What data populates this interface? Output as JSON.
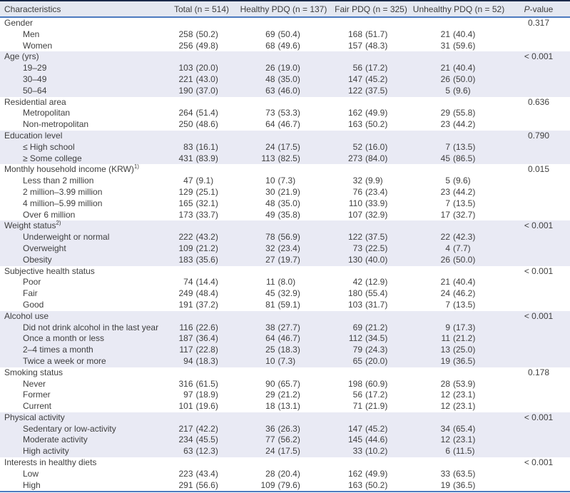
{
  "colors": {
    "top_rule": "#1b2a4a",
    "blue_rule": "#4c7bbf",
    "header_bg": "#e4e8f1",
    "shaded_row_bg": "#e9eaf4",
    "text": "#3f3f3f"
  },
  "table": {
    "header": {
      "characteristics": "Characteristics",
      "total": "Total (n = 514)",
      "healthy": "Healthy PDQ (n = 137)",
      "fair": "Fair PDQ (n = 325)",
      "unhealthy": "Unhealthy PDQ (n = 52)",
      "p_italic": "P",
      "p_rest": "-value"
    },
    "sections": [
      {
        "label": "Gender",
        "sup": "",
        "p_value": "0.317",
        "shaded": false,
        "rows": [
          {
            "label": "Men",
            "values": [
              "258 (50.2)",
              "69 (50.4)",
              "168 (51.7)",
              "21 (40.4)"
            ]
          },
          {
            "label": "Women",
            "values": [
              "256 (49.8)",
              "68 (49.6)",
              "157 (48.3)",
              "31 (59.6)"
            ]
          }
        ]
      },
      {
        "label": "Age (yrs)",
        "sup": "",
        "p_value": "< 0.001",
        "shaded": true,
        "rows": [
          {
            "label": "19–29",
            "values": [
              "103 (20.0)",
              "26 (19.0)",
              "56 (17.2)",
              "21 (40.4)"
            ]
          },
          {
            "label": "30–49",
            "values": [
              "221 (43.0)",
              "48 (35.0)",
              "147 (45.2)",
              "26 (50.0)"
            ]
          },
          {
            "label": "50–64",
            "values": [
              "190 (37.0)",
              "63 (46.0)",
              "122 (37.5)",
              "5 (9.6)"
            ]
          }
        ]
      },
      {
        "label": "Residential area",
        "sup": "",
        "p_value": "0.636",
        "shaded": false,
        "rows": [
          {
            "label": "Metropolitan",
            "values": [
              "264 (51.4)",
              "73 (53.3)",
              "162 (49.9)",
              "29 (55.8)"
            ]
          },
          {
            "label": "Non-metropolitan",
            "values": [
              "250 (48.6)",
              "64 (46.7)",
              "163 (50.2)",
              "23 (44.2)"
            ]
          }
        ]
      },
      {
        "label": "Education level",
        "sup": "",
        "p_value": "0.790",
        "shaded": true,
        "rows": [
          {
            "label": "≤ High school",
            "values": [
              "83 (16.1)",
              "24 (17.5)",
              "52 (16.0)",
              "7 (13.5)"
            ]
          },
          {
            "label": "≥ Some college",
            "values": [
              "431 (83.9)",
              "113 (82.5)",
              "273 (84.0)",
              "45 (86.5)"
            ]
          }
        ]
      },
      {
        "label": "Monthly household income (KRW)",
        "sup": "1)",
        "p_value": "0.015",
        "shaded": false,
        "rows": [
          {
            "label": "Less than 2 million",
            "values": [
              "47 (9.1)",
              "10 (7.3)",
              "32 (9.9)",
              "5 (9.6)"
            ]
          },
          {
            "label": "2 million–3.99 million",
            "values": [
              "129 (25.1)",
              "30 (21.9)",
              "76 (23.4)",
              "23 (44.2)"
            ]
          },
          {
            "label": "4 million–5.99 million",
            "values": [
              "165 (32.1)",
              "48 (35.0)",
              "110 (33.9)",
              "7 (13.5)"
            ]
          },
          {
            "label": "Over 6 million",
            "values": [
              "173 (33.7)",
              "49 (35.8)",
              "107 (32.9)",
              "17 (32.7)"
            ]
          }
        ]
      },
      {
        "label": "Weight status",
        "sup": "2)",
        "p_value": "< 0.001",
        "shaded": true,
        "rows": [
          {
            "label": "Underweight or normal",
            "values": [
              "222 (43.2)",
              "78 (56.9)",
              "122 (37.5)",
              "22 (42.3)"
            ]
          },
          {
            "label": "Overweight",
            "values": [
              "109 (21.2)",
              "32 (23.4)",
              "73 (22.5)",
              "4 (7.7)"
            ]
          },
          {
            "label": "Obesity",
            "values": [
              "183 (35.6)",
              "27 (19.7)",
              "130 (40.0)",
              "26 (50.0)"
            ]
          }
        ]
      },
      {
        "label": "Subjective health status",
        "sup": "",
        "p_value": "< 0.001",
        "shaded": false,
        "rows": [
          {
            "label": "Poor",
            "values": [
              "74 (14.4)",
              "11 (8.0)",
              "42 (12.9)",
              "21 (40.4)"
            ]
          },
          {
            "label": "Fair",
            "values": [
              "249 (48.4)",
              "45 (32.9)",
              "180 (55.4)",
              "24 (46.2)"
            ]
          },
          {
            "label": "Good",
            "values": [
              "191 (37.2)",
              "81 (59.1)",
              "103 (31.7)",
              "7 (13.5)"
            ]
          }
        ]
      },
      {
        "label": "Alcohol use",
        "sup": "",
        "p_value": "< 0.001",
        "shaded": true,
        "rows": [
          {
            "label": "Did not drink alcohol in the last year",
            "values": [
              "116 (22.6)",
              "38 (27.7)",
              "69 (21.2)",
              "9 (17.3)"
            ]
          },
          {
            "label": "Once a month or less",
            "values": [
              "187 (36.4)",
              "64 (46.7)",
              "112 (34.5)",
              "11 (21.2)"
            ]
          },
          {
            "label": "2–4 times a month",
            "values": [
              "117 (22.8)",
              "25 (18.3)",
              "79 (24.3)",
              "13 (25.0)"
            ]
          },
          {
            "label": "Twice a week or more",
            "values": [
              "94 (18.3)",
              "10 (7.3)",
              "65 (20.0)",
              "19 (36.5)"
            ]
          }
        ]
      },
      {
        "label": "Smoking status",
        "sup": "",
        "p_value": "0.178",
        "shaded": false,
        "rows": [
          {
            "label": "Never",
            "values": [
              "316 (61.5)",
              "90 (65.7)",
              "198 (60.9)",
              "28 (53.9)"
            ]
          },
          {
            "label": "Former",
            "values": [
              "97 (18.9)",
              "29 (21.2)",
              "56 (17.2)",
              "12 (23.1)"
            ]
          },
          {
            "label": "Current",
            "values": [
              "101 (19.6)",
              "18 (13.1)",
              "71 (21.9)",
              "12 (23.1)"
            ]
          }
        ]
      },
      {
        "label": "Physical activity",
        "sup": "",
        "p_value": "< 0.001",
        "shaded": true,
        "rows": [
          {
            "label": "Sedentary or low-activity",
            "values": [
              "217 (42.2)",
              "36 (26.3)",
              "147 (45.2)",
              "34 (65.4)"
            ]
          },
          {
            "label": "Moderate activity",
            "values": [
              "234 (45.5)",
              "77 (56.2)",
              "145 (44.6)",
              "12 (23.1)"
            ]
          },
          {
            "label": "High activity",
            "values": [
              "63 (12.3)",
              "24 (17.5)",
              "33 (10.2)",
              "6 (11.5)"
            ]
          }
        ]
      },
      {
        "label": "Interests in healthy diets",
        "sup": "",
        "p_value": "< 0.001",
        "shaded": false,
        "rows": [
          {
            "label": "Low",
            "values": [
              "223 (43.4)",
              "28 (20.4)",
              "162 (49.9)",
              "33 (63.5)"
            ]
          },
          {
            "label": "High",
            "values": [
              "291 (56.6)",
              "109 (79.6)",
              "163 (50.2)",
              "19 (36.5)"
            ]
          }
        ]
      }
    ]
  }
}
